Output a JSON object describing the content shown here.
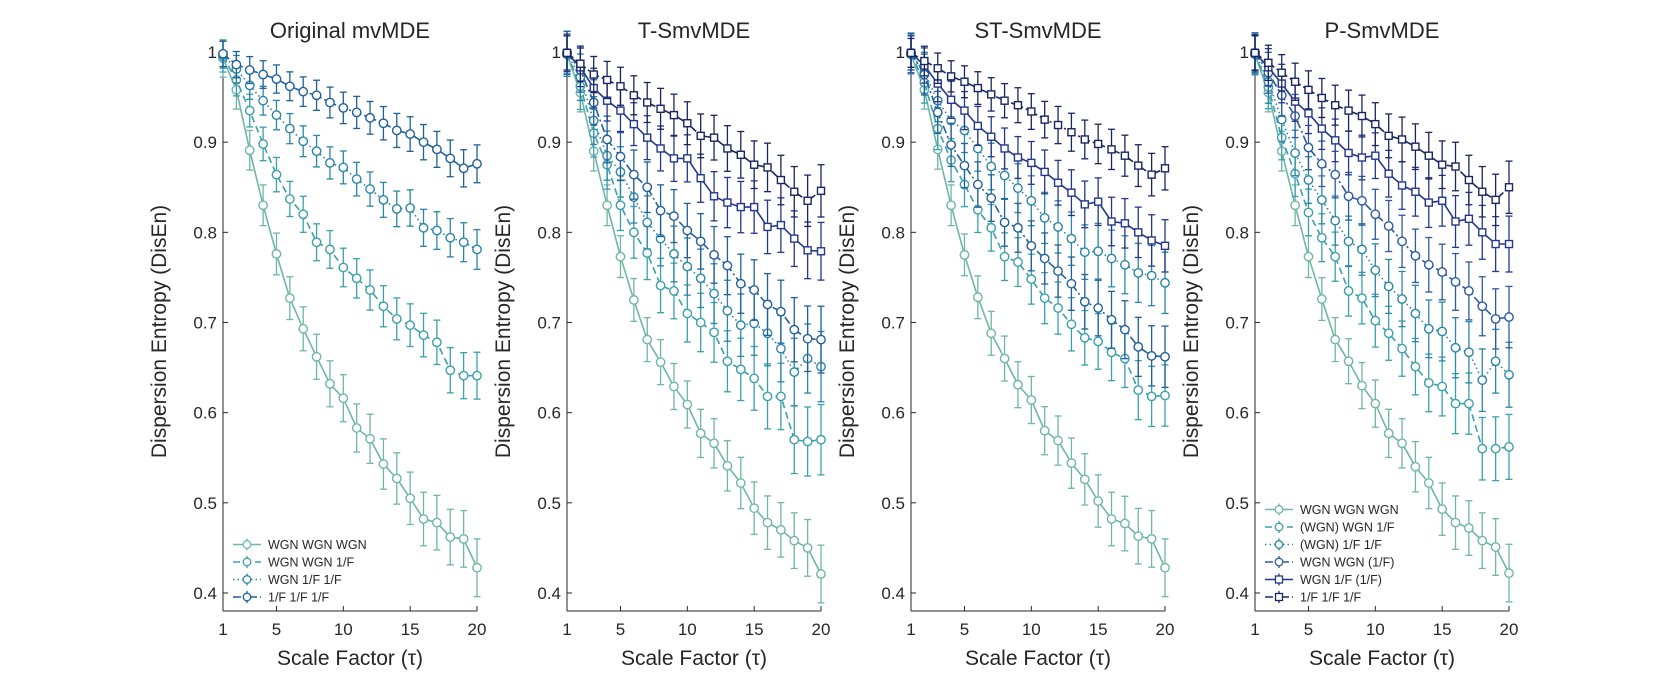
{
  "figure": {
    "xlabel": "Scale Factor (τ)",
    "ylabel": "Dispersion Entropy (DisEn)"
  },
  "colors": {
    "WGN WGN WGN": "#6fb6a8",
    "WGN WGN 1/F": "#3aa0ac",
    "WGN 1/F 1/F": "#2a86a8",
    "1/F 1/F 1/F": "#1f5f9a",
    "(WGN) WGN 1/F": "#3aa0ac",
    "(WGN) 1/F 1/F": "#2a86a8",
    "WGN WGN (1/F)": "#2c5aa0",
    "WGN 1/F (1/F)": "#24378c",
    "1/F 1/F 1/F dark": "#1a2560",
    "axis": "#262626"
  },
  "chart_data": [
    {
      "type": "line",
      "title": "Original mvMDE",
      "xlabel": "Scale Factor (τ)",
      "ylabel": "Dispersion Entropy (DisEn)",
      "xlim": [
        1,
        20
      ],
      "ylim": [
        0.38,
        1.0
      ],
      "xticks": [
        1,
        5,
        10,
        15,
        20
      ],
      "yticks": [
        0.4,
        0.5,
        0.6,
        0.7,
        0.8,
        0.9,
        1
      ],
      "legend_position": "bottom-left",
      "x": [
        1,
        2,
        3,
        4,
        5,
        6,
        7,
        8,
        9,
        10,
        11,
        12,
        13,
        14,
        15,
        16,
        17,
        18,
        19,
        20
      ],
      "series": [
        {
          "name": "WGN WGN WGN",
          "color_key": "WGN WGN WGN",
          "dash": "solid",
          "marker": "circle",
          "err": 0.028,
          "values": [
            0.993,
            0.958,
            0.891,
            0.83,
            0.776,
            0.727,
            0.693,
            0.662,
            0.632,
            0.616,
            0.583,
            0.571,
            0.543,
            0.527,
            0.505,
            0.482,
            0.478,
            0.462,
            0.46,
            0.428
          ]
        },
        {
          "name": "WGN WGN 1/F",
          "color_key": "WGN WGN 1/F",
          "dash": "dashed",
          "marker": "circle",
          "err": 0.022,
          "values": [
            0.995,
            0.969,
            0.935,
            0.898,
            0.864,
            0.837,
            0.82,
            0.789,
            0.781,
            0.761,
            0.749,
            0.736,
            0.718,
            0.704,
            0.697,
            0.686,
            0.678,
            0.647,
            0.641,
            0.641
          ]
        },
        {
          "name": "WGN 1/F 1/F",
          "color_key": "WGN 1/F 1/F",
          "dash": "dotted",
          "marker": "circle",
          "err": 0.018,
          "values": [
            0.997,
            0.981,
            0.963,
            0.946,
            0.93,
            0.915,
            0.901,
            0.89,
            0.877,
            0.872,
            0.859,
            0.848,
            0.836,
            0.826,
            0.827,
            0.805,
            0.802,
            0.794,
            0.789,
            0.781
          ]
        },
        {
          "name": "1/F 1/F 1/F",
          "color_key": "1/F 1/F 1/F",
          "dash": "dashdot",
          "marker": "circle",
          "err": 0.017,
          "values": [
            0.998,
            0.986,
            0.98,
            0.975,
            0.97,
            0.962,
            0.956,
            0.952,
            0.944,
            0.938,
            0.933,
            0.927,
            0.921,
            0.913,
            0.909,
            0.9,
            0.892,
            0.882,
            0.871,
            0.876
          ]
        }
      ]
    },
    {
      "type": "line",
      "title": "T-SmvMDE",
      "xlabel": "Scale Factor (τ)",
      "ylabel": "Dispersion Entropy (DisEn)",
      "xlim": [
        1,
        20
      ],
      "ylim": [
        0.38,
        1.0
      ],
      "xticks": [
        1,
        5,
        10,
        15,
        20
      ],
      "yticks": [
        0.4,
        0.5,
        0.6,
        0.7,
        0.8,
        0.9,
        1
      ],
      "x": [
        1,
        2,
        3,
        4,
        5,
        6,
        7,
        8,
        9,
        10,
        11,
        12,
        13,
        14,
        15,
        16,
        17,
        18,
        19,
        20
      ],
      "series": [
        {
          "name": "WGN WGN WGN",
          "color_key": "WGN WGN WGN",
          "dash": "solid",
          "marker": "circle",
          "err": 0.028,
          "values": [
            0.997,
            0.955,
            0.89,
            0.83,
            0.773,
            0.725,
            0.681,
            0.656,
            0.629,
            0.609,
            0.577,
            0.566,
            0.541,
            0.522,
            0.494,
            0.478,
            0.47,
            0.458,
            0.45,
            0.421
          ]
        },
        {
          "name": "WGN WGN 1/F",
          "color_key": "WGN WGN 1/F",
          "dash": "dashed",
          "marker": "circle",
          "err": 0.035,
          "values": [
            0.998,
            0.962,
            0.91,
            0.875,
            0.83,
            0.8,
            0.777,
            0.741,
            0.735,
            0.71,
            0.7,
            0.689,
            0.657,
            0.648,
            0.638,
            0.618,
            0.618,
            0.57,
            0.568,
            0.57
          ]
        },
        {
          "name": "WGN 1/F 1/F",
          "color_key": "WGN 1/F 1/F",
          "dash": "dotted",
          "marker": "circle",
          "err": 0.035,
          "values": [
            0.998,
            0.972,
            0.924,
            0.885,
            0.867,
            0.839,
            0.811,
            0.793,
            0.776,
            0.762,
            0.749,
            0.732,
            0.713,
            0.697,
            0.699,
            0.688,
            0.671,
            0.645,
            0.66,
            0.651
          ]
        },
        {
          "name": "1/F 1/F 1/F",
          "color_key": "1/F 1/F 1/F",
          "dash": "dashdot",
          "marker": "circle",
          "err": 0.033,
          "values": [
            0.999,
            0.98,
            0.944,
            0.903,
            0.884,
            0.864,
            0.85,
            0.824,
            0.818,
            0.802,
            0.79,
            0.775,
            0.763,
            0.743,
            0.736,
            0.72,
            0.712,
            0.692,
            0.682,
            0.681
          ]
        },
        {
          "name": "WGN 1/F (1/F)",
          "color_key": "WGN 1/F (1/F)",
          "dash": "solid",
          "marker": "square",
          "err": 0.028,
          "values": [
            0.999,
            0.983,
            0.96,
            0.946,
            0.935,
            0.92,
            0.905,
            0.893,
            0.882,
            0.882,
            0.86,
            0.84,
            0.833,
            0.828,
            0.828,
            0.806,
            0.808,
            0.793,
            0.78,
            0.779
          ]
        },
        {
          "name": "1/F 1/F 1/F",
          "color_key": "1/F 1/F 1/F dark",
          "dash": "dashdot",
          "marker": "square",
          "err": 0.025,
          "values": [
            0.999,
            0.987,
            0.975,
            0.969,
            0.962,
            0.952,
            0.944,
            0.937,
            0.93,
            0.921,
            0.907,
            0.905,
            0.893,
            0.886,
            0.875,
            0.872,
            0.858,
            0.845,
            0.835,
            0.846
          ]
        }
      ]
    },
    {
      "type": "line",
      "title": "ST-SmvMDE",
      "xlabel": "Scale Factor (τ)",
      "ylabel": "Dispersion Entropy (DisEn)",
      "xlim": [
        1,
        20
      ],
      "ylim": [
        0.38,
        1.0
      ],
      "xticks": [
        1,
        5,
        10,
        15,
        20
      ],
      "yticks": [
        0.4,
        0.5,
        0.6,
        0.7,
        0.8,
        0.9,
        1
      ],
      "x": [
        1,
        2,
        3,
        4,
        5,
        6,
        7,
        8,
        9,
        10,
        11,
        12,
        13,
        14,
        15,
        16,
        17,
        18,
        19,
        20
      ],
      "series": [
        {
          "name": "WGN WGN WGN",
          "color_key": "WGN WGN WGN",
          "dash": "solid",
          "marker": "circle",
          "err": 0.028,
          "values": [
            0.997,
            0.958,
            0.892,
            0.83,
            0.775,
            0.728,
            0.688,
            0.66,
            0.631,
            0.614,
            0.58,
            0.569,
            0.544,
            0.526,
            0.502,
            0.482,
            0.477,
            0.463,
            0.46,
            0.428
          ]
        },
        {
          "name": "WGN WGN 1/F",
          "color_key": "WGN WGN 1/F",
          "dash": "dashed",
          "marker": "circle",
          "err": 0.03,
          "values": [
            0.998,
            0.966,
            0.915,
            0.88,
            0.853,
            0.825,
            0.805,
            0.773,
            0.767,
            0.748,
            0.727,
            0.716,
            0.698,
            0.683,
            0.679,
            0.667,
            0.66,
            0.625,
            0.618,
            0.619
          ]
        },
        {
          "name": "WGN 1/F 1/F",
          "color_key": "WGN 1/F 1/F",
          "dash": "dotted",
          "marker": "circle",
          "err": 0.03,
          "values": [
            0.998,
            0.977,
            0.946,
            0.924,
            0.913,
            0.893,
            0.873,
            0.863,
            0.849,
            0.835,
            0.816,
            0.806,
            0.793,
            0.778,
            0.779,
            0.771,
            0.764,
            0.755,
            0.752,
            0.744
          ]
        },
        {
          "name": "1/F 1/F 1/F",
          "color_key": "1/F 1/F 1/F",
          "dash": "dashdot",
          "marker": "circle",
          "err": 0.03,
          "values": [
            0.999,
            0.975,
            0.933,
            0.897,
            0.874,
            0.853,
            0.838,
            0.811,
            0.805,
            0.785,
            0.771,
            0.757,
            0.743,
            0.723,
            0.716,
            0.703,
            0.692,
            0.673,
            0.663,
            0.662
          ]
        },
        {
          "name": "WGN 1/F (1/F)",
          "color_key": "WGN 1/F (1/F)",
          "dash": "solid",
          "marker": "square",
          "err": 0.025,
          "values": [
            0.999,
            0.985,
            0.965,
            0.947,
            0.935,
            0.918,
            0.906,
            0.893,
            0.883,
            0.877,
            0.867,
            0.855,
            0.844,
            0.831,
            0.834,
            0.812,
            0.81,
            0.8,
            0.791,
            0.785
          ]
        },
        {
          "name": "1/F 1/F 1/F",
          "color_key": "1/F 1/F 1/F dark",
          "dash": "dashdot",
          "marker": "square",
          "err": 0.02,
          "values": [
            0.999,
            0.99,
            0.982,
            0.973,
            0.967,
            0.96,
            0.953,
            0.946,
            0.941,
            0.934,
            0.925,
            0.919,
            0.911,
            0.903,
            0.898,
            0.892,
            0.885,
            0.874,
            0.864,
            0.871
          ]
        }
      ]
    },
    {
      "type": "line",
      "title": "P-SmvMDE",
      "xlabel": "Scale Factor (τ)",
      "ylabel": "Dispersion Entropy (DisEn)",
      "xlim": [
        1,
        20
      ],
      "ylim": [
        0.38,
        1.0
      ],
      "xticks": [
        1,
        5,
        10,
        15,
        20
      ],
      "yticks": [
        0.4,
        0.5,
        0.6,
        0.7,
        0.8,
        0.9,
        1
      ],
      "legend_position": "bottom-left",
      "x": [
        1,
        2,
        3,
        4,
        5,
        6,
        7,
        8,
        9,
        10,
        11,
        12,
        13,
        14,
        15,
        16,
        17,
        18,
        19,
        20
      ],
      "series": [
        {
          "name": "WGN WGN WGN",
          "color_key": "WGN WGN WGN",
          "dash": "solid",
          "marker": "circle",
          "err": 0.028,
          "values": [
            0.997,
            0.955,
            0.89,
            0.83,
            0.773,
            0.726,
            0.681,
            0.657,
            0.63,
            0.61,
            0.577,
            0.566,
            0.54,
            0.522,
            0.493,
            0.478,
            0.472,
            0.458,
            0.451,
            0.422
          ]
        },
        {
          "name": "(WGN) WGN 1/F",
          "color_key": "(WGN) WGN 1/F",
          "dash": "dashed",
          "marker": "circle",
          "err": 0.032,
          "values": [
            0.998,
            0.961,
            0.905,
            0.865,
            0.822,
            0.794,
            0.773,
            0.735,
            0.727,
            0.702,
            0.688,
            0.671,
            0.651,
            0.633,
            0.629,
            0.61,
            0.61,
            0.56,
            0.56,
            0.562
          ]
        },
        {
          "name": "(WGN) 1/F 1/F",
          "color_key": "(WGN) 1/F 1/F",
          "dash": "dotted",
          "marker": "circle",
          "err": 0.032,
          "values": [
            0.998,
            0.967,
            0.925,
            0.888,
            0.858,
            0.836,
            0.813,
            0.79,
            0.781,
            0.758,
            0.74,
            0.726,
            0.71,
            0.693,
            0.69,
            0.672,
            0.667,
            0.636,
            0.657,
            0.642
          ]
        },
        {
          "name": "WGN WGN (1/F)",
          "color_key": "WGN WGN (1/F)",
          "dash": "dashdot",
          "marker": "circle",
          "err": 0.03,
          "values": [
            0.999,
            0.977,
            0.952,
            0.929,
            0.894,
            0.876,
            0.864,
            0.84,
            0.835,
            0.82,
            0.807,
            0.79,
            0.774,
            0.764,
            0.756,
            0.745,
            0.735,
            0.718,
            0.704,
            0.706
          ]
        },
        {
          "name": "WGN 1/F (1/F)",
          "color_key": "WGN 1/F (1/F)",
          "dash": "solid",
          "marker": "square",
          "err": 0.027,
          "values": [
            0.999,
            0.983,
            0.965,
            0.945,
            0.932,
            0.915,
            0.902,
            0.888,
            0.883,
            0.885,
            0.865,
            0.852,
            0.845,
            0.833,
            0.835,
            0.812,
            0.815,
            0.8,
            0.787,
            0.787
          ]
        },
        {
          "name": "1/F 1/F 1/F",
          "color_key": "1/F 1/F 1/F dark",
          "dash": "dashdot",
          "marker": "square",
          "err": 0.025,
          "values": [
            0.999,
            0.988,
            0.977,
            0.967,
            0.958,
            0.949,
            0.941,
            0.935,
            0.929,
            0.92,
            0.907,
            0.903,
            0.895,
            0.885,
            0.875,
            0.873,
            0.858,
            0.845,
            0.836,
            0.85
          ]
        }
      ]
    }
  ]
}
